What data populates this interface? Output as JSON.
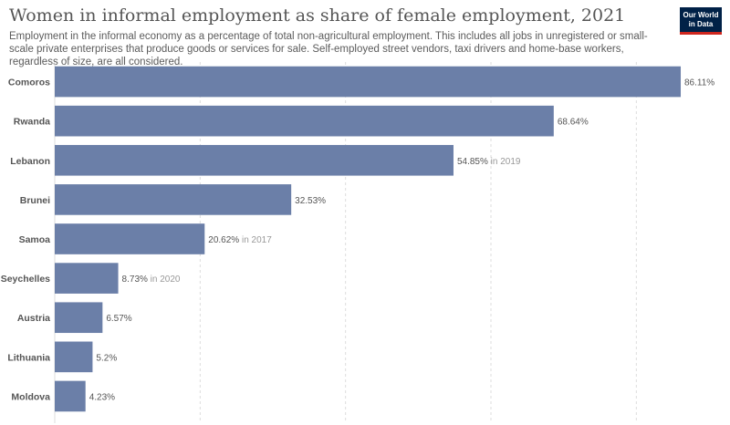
{
  "header": {
    "title": "Women in informal employment as share of female employment, 2021",
    "subtitle": "Employment in the informal economy as a percentage of total non-agricultural employment. This includes all jobs in unregistered or small-scale private enterprises that produce goods or services for sale. Self-employed street vendors, taxi drivers and home-base workers, regardless of size, are all considered.",
    "logo_line1": "Our World",
    "logo_line2": "in Data"
  },
  "colors": {
    "bar": "#6b7fa8",
    "grid": "#dddddd",
    "note": "#999999",
    "logo_bg": "#002147",
    "logo_accent": "#ce261e"
  },
  "chart_data": {
    "type": "bar",
    "orientation": "horizontal",
    "categories": [
      "Comoros",
      "Rwanda",
      "Lebanon",
      "Brunei",
      "Samoa",
      "Seychelles",
      "Austria",
      "Lithuania",
      "Moldova"
    ],
    "values": [
      86.11,
      68.64,
      54.85,
      32.53,
      20.62,
      8.73,
      6.57,
      5.2,
      4.23
    ],
    "value_labels": [
      "86.11%",
      "68.64%",
      "54.85%",
      "32.53%",
      "20.62%",
      "8.73%",
      "6.57%",
      "5.2%",
      "4.23%"
    ],
    "notes": [
      "",
      "",
      "in 2019",
      "",
      "in 2017",
      "in 2020",
      "",
      "",
      ""
    ],
    "xlim": [
      0,
      90
    ],
    "gridlines": [
      0,
      20,
      40,
      60,
      80
    ],
    "grid": true
  }
}
